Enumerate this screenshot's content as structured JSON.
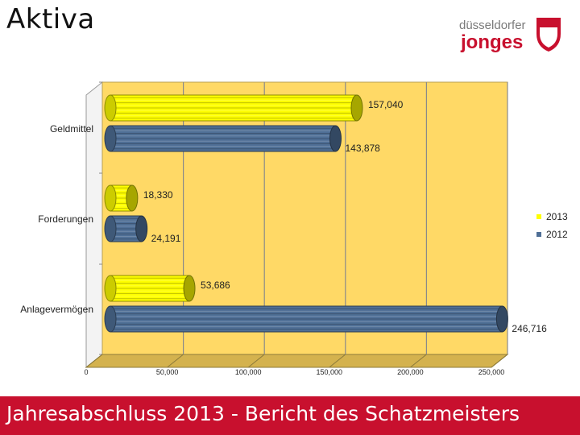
{
  "slide": {
    "title": "Aktiva",
    "footer": "Jahresabschluss 2013  -  Bericht des Schatzmeisters"
  },
  "logo": {
    "line1": "düsseldorfer",
    "line2": "jonges"
  },
  "colors": {
    "plot_background": "#ffd966",
    "floor": "#d4b24e",
    "series_2013": "#ffff00",
    "series_2012": "#4f6f96",
    "footer_background": "#c8102e",
    "logo_red": "#c8102e"
  },
  "chart_data": {
    "type": "bar",
    "orientation": "horizontal",
    "style": "3d-cylinder",
    "categories": [
      "Geldmittel",
      "Forderungen",
      "Anlagevermögen"
    ],
    "series": [
      {
        "name": "2013",
        "values": [
          157040,
          18330,
          53686
        ],
        "labels": [
          "157,040",
          "18,330",
          "53,686"
        ]
      },
      {
        "name": "2012",
        "values": [
          143878,
          24191,
          246716
        ],
        "labels": [
          "143,878",
          "24,191",
          "246,716"
        ]
      }
    ],
    "xlim": [
      0,
      250000
    ],
    "xticks": [
      0,
      50000,
      100000,
      150000,
      200000,
      250000
    ],
    "xtick_labels": [
      "0",
      "50,000",
      "100,000",
      "150,000",
      "200,000",
      "250,000"
    ],
    "grid": "vertical",
    "legend_position": "right"
  }
}
